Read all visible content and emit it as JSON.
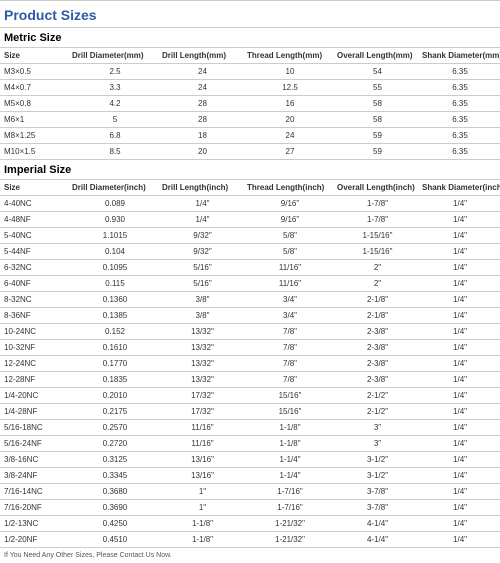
{
  "heading": "Product Sizes",
  "metric": {
    "title": "Metric Size",
    "columns": [
      "Size",
      "Drill Diameter(mm)",
      "Drill Length(mm)",
      "Thread Length(mm)",
      "Overall Length(mm)",
      "Shank Diameter(mm)"
    ],
    "rows": [
      [
        "M3×0.5",
        "2.5",
        "24",
        "10",
        "54",
        "6.35"
      ],
      [
        "M4×0.7",
        "3.3",
        "24",
        "12.5",
        "55",
        "6.35"
      ],
      [
        "M5×0.8",
        "4.2",
        "28",
        "16",
        "58",
        "6.35"
      ],
      [
        "M6×1",
        "5",
        "28",
        "20",
        "58",
        "6.35"
      ],
      [
        "M8×1.25",
        "6.8",
        "18",
        "24",
        "59",
        "6.35"
      ],
      [
        "M10×1.5",
        "8.5",
        "20",
        "27",
        "59",
        "6.35"
      ]
    ]
  },
  "imperial": {
    "title": "Imperial Size",
    "columns": [
      "Size",
      "Drill Diameter(inch)",
      "Drill Length(inch)",
      "Thread Length(inch)",
      "Overall Length(inch)",
      "Shank Diameter(inch)"
    ],
    "rows": [
      [
        "4-40NC",
        "0.089",
        "1/4\"",
        "9/16\"",
        "1-7/8\"",
        "1/4\""
      ],
      [
        "4-48NF",
        "0.930",
        "1/4\"",
        "9/16\"",
        "1-7/8\"",
        "1/4\""
      ],
      [
        "5-40NC",
        "1.1015",
        "9/32\"",
        "5/8\"",
        "1-15/16\"",
        "1/4\""
      ],
      [
        "5-44NF",
        "0.104",
        "9/32\"",
        "5/8\"",
        "1-15/16\"",
        "1/4\""
      ],
      [
        "6-32NC",
        "0.1095",
        "5/16\"",
        "11/16\"",
        "2\"",
        "1/4\""
      ],
      [
        "6-40NF",
        "0.115",
        "5/16\"",
        "11/16\"",
        "2\"",
        "1/4\""
      ],
      [
        "8-32NC",
        "0.1360",
        "3/8\"",
        "3/4\"",
        "2-1/8\"",
        "1/4\""
      ],
      [
        "8-36NF",
        "0.1385",
        "3/8\"",
        "3/4\"",
        "2-1/8\"",
        "1/4\""
      ],
      [
        "10-24NC",
        "0.152",
        "13/32\"",
        "7/8\"",
        "2-3/8\"",
        "1/4\""
      ],
      [
        "10-32NF",
        "0.1610",
        "13/32\"",
        "7/8\"",
        "2-3/8\"",
        "1/4\""
      ],
      [
        "12-24NC",
        "0.1770",
        "13/32\"",
        "7/8\"",
        "2-3/8\"",
        "1/4\""
      ],
      [
        "12-28NF",
        "0.1835",
        "13/32\"",
        "7/8\"",
        "2-3/8\"",
        "1/4\""
      ],
      [
        "1/4-20NC",
        "0.2010",
        "17/32\"",
        "15/16\"",
        "2-1/2\"",
        "1/4\""
      ],
      [
        "1/4-28NF",
        "0.2175",
        "17/32\"",
        "15/16\"",
        "2-1/2\"",
        "1/4\""
      ],
      [
        "5/16-18NC",
        "0.2570",
        "11/16\"",
        "1-1/8\"",
        "3\"",
        "1/4\""
      ],
      [
        "5/16-24NF",
        "0.2720",
        "11/16\"",
        "1-1/8\"",
        "3\"",
        "1/4\""
      ],
      [
        "3/8-16NC",
        "0.3125",
        "13/16\"",
        "1-1/4\"",
        "3-1/2\"",
        "1/4\""
      ],
      [
        "3/8-24NF",
        "0.3345",
        "13/16\"",
        "1-1/4\"",
        "3-1/2\"",
        "1/4\""
      ],
      [
        "7/16-14NC",
        "0.3680",
        "1\"",
        "1-7/16\"",
        "3-7/8\"",
        "1/4\""
      ],
      [
        "7/16-20NF",
        "0.3690",
        "1\"",
        "1-7/16\"",
        "3-7/8\"",
        "1/4\""
      ],
      [
        "1/2-13NC",
        "0.4250",
        "1-1/8\"",
        "1-21/32\"",
        "4-1/4\"",
        "1/4\""
      ],
      [
        "1/2-20NF",
        "0.4510",
        "1-1/8\"",
        "1-21/32\"",
        "4-1/4\"",
        "1/4\""
      ]
    ]
  },
  "footer": "If You Need Any Other Sizes, Please Contact Us Now."
}
